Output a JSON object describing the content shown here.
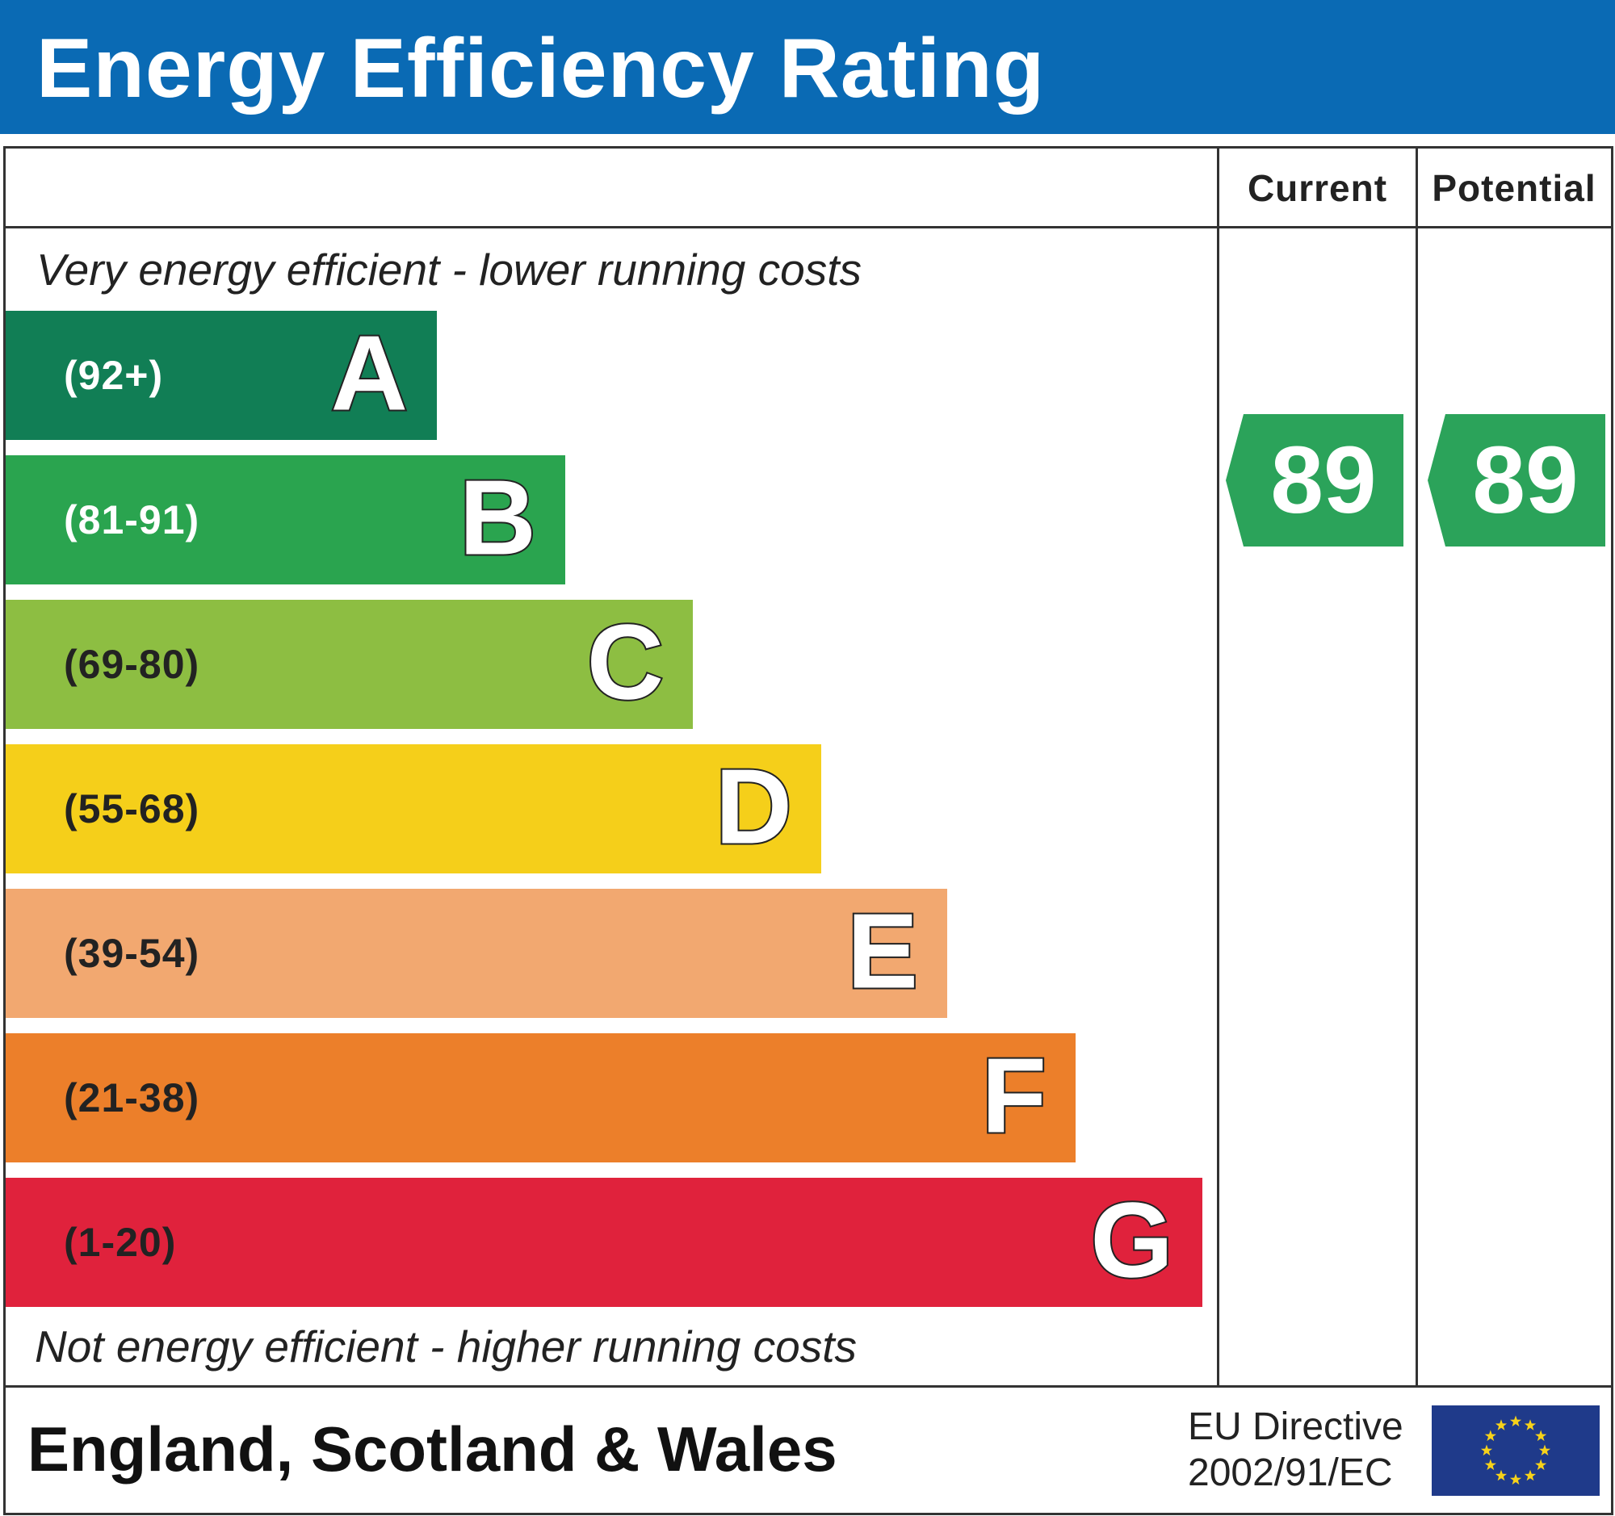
{
  "title": "Energy Efficiency Rating",
  "columns": {
    "current": "Current",
    "potential": "Potential"
  },
  "top_note": "Very energy efficient - lower running costs",
  "bottom_note": "Not energy efficient - higher running costs",
  "bands": [
    {
      "letter": "A",
      "range": "(92+)",
      "color": "#117e55",
      "text_color": "#ffffff"
    },
    {
      "letter": "B",
      "range": "(81-91)",
      "color": "#2aa44f",
      "text_color": "#ffffff"
    },
    {
      "letter": "C",
      "range": "(69-80)",
      "color": "#8dbe42",
      "text_color": "#222222"
    },
    {
      "letter": "D",
      "range": "(55-68)",
      "color": "#f5cf1a",
      "text_color": "#222222"
    },
    {
      "letter": "E",
      "range": "(39-54)",
      "color": "#f2a870",
      "text_color": "#222222"
    },
    {
      "letter": "F",
      "range": "(21-38)",
      "color": "#ec7f2a",
      "text_color": "#222222"
    },
    {
      "letter": "G",
      "range": "(1-20)",
      "color": "#e0223c",
      "text_color": "#222222"
    }
  ],
  "current_rating": {
    "value": "89",
    "band": "B",
    "color": "#2ba35a"
  },
  "potential_rating": {
    "value": "89",
    "band": "B",
    "color": "#2ba35a"
  },
  "footer": {
    "region": "England, Scotland & Wales",
    "directive_line1": "EU Directive",
    "directive_line2": "2002/91/EC",
    "flag_icon": "eu-flag-icon",
    "flag_color": "#1f3a8a",
    "star_color": "#f7d21a"
  },
  "header_color": "#0a6ab4"
}
